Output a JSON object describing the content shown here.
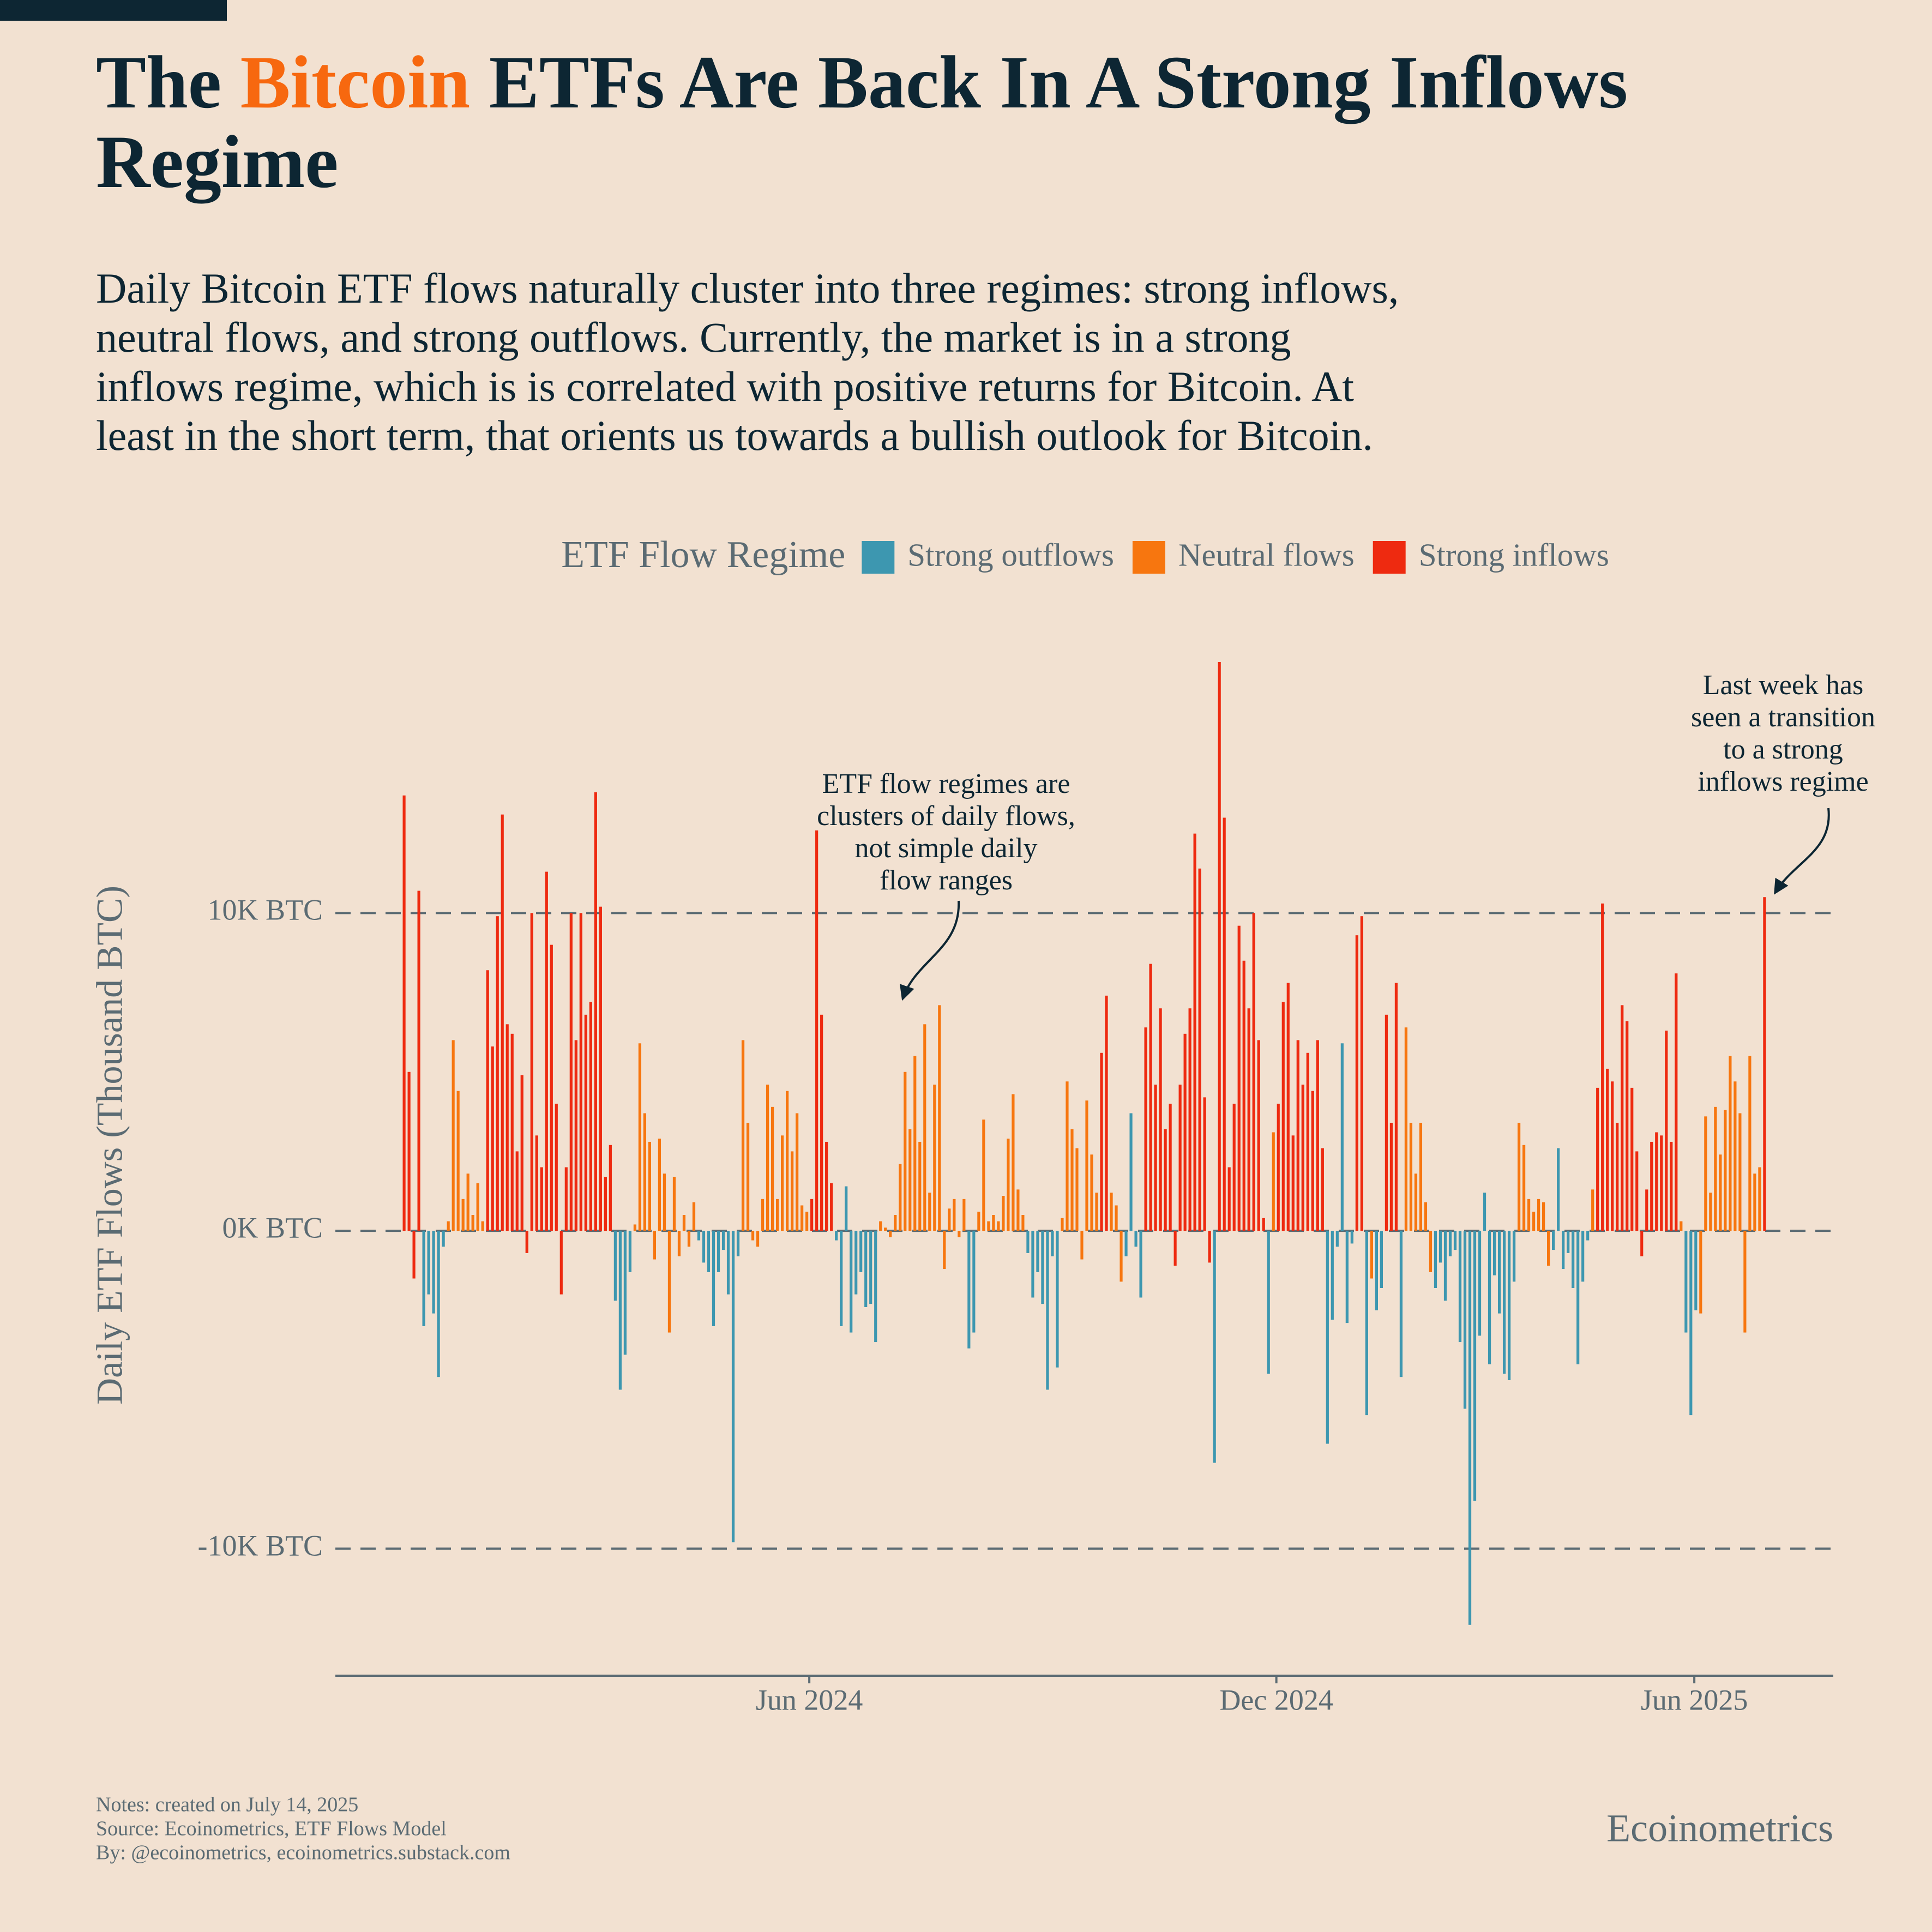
{
  "chart_data": {
    "type": "bar",
    "title": {
      "lead": "The",
      "highlight": "Bitcoin",
      "rest": "ETFs Are Back In A Strong Inflows Regime"
    },
    "subtitle": [
      "Daily Bitcoin ETF flows naturally cluster into three regimes: strong inflows,",
      "neutral flows, and strong outflows. Currently, the market is in a strong",
      "inflows regime, which is is correlated with positive returns for Bitcoin. At",
      "least in the short term, that orients us towards a bullish outlook for Bitcoin."
    ],
    "legend_title": "ETF Flow Regime",
    "y_label": "Daily ETF Flows (Thousand BTC)",
    "ylim": [
      -14,
      18.5
    ],
    "yticks": [
      {
        "value": 10,
        "label": "10K BTC"
      },
      {
        "value": 0,
        "label": "0K BTC"
      },
      {
        "value": -10,
        "label": "-10K BTC"
      }
    ],
    "grid": true,
    "xlim": [
      -14,
      291
    ],
    "xticks": [
      {
        "value": 82.5,
        "label": "Jun 2024"
      },
      {
        "value": 177.6,
        "label": "Dec 2024"
      },
      {
        "value": 262.7,
        "label": "Jun 2025"
      }
    ],
    "categories": [
      null,
      null,
      null,
      null,
      null,
      null,
      null,
      null,
      null,
      null,
      null,
      null,
      null,
      null,
      null,
      null,
      null,
      null,
      null,
      null,
      null,
      null,
      null,
      null,
      null,
      null,
      null,
      null,
      null,
      null,
      null,
      null,
      null,
      null,
      null,
      null,
      null,
      null,
      null,
      null,
      null,
      null,
      null,
      null,
      null,
      null,
      null,
      null,
      null,
      null,
      null,
      null,
      null,
      null,
      null,
      null,
      null,
      null,
      null,
      null,
      null,
      null,
      null,
      null,
      null,
      null,
      null,
      null,
      null,
      null,
      null,
      null,
      null,
      null,
      null,
      null,
      null,
      null,
      null,
      null,
      null,
      null,
      null,
      null,
      null,
      null,
      null,
      null,
      null,
      null,
      null,
      null,
      null,
      null,
      null,
      null,
      null,
      null,
      null,
      null,
      null,
      null,
      null,
      null,
      null,
      null,
      null,
      null,
      null,
      null,
      null,
      null,
      null,
      null,
      null,
      null,
      null,
      null,
      null,
      null,
      null,
      null,
      null,
      null,
      null,
      null,
      null,
      null,
      null,
      null,
      null,
      null,
      null,
      null,
      null,
      null,
      null,
      null,
      null,
      null,
      null,
      null,
      null,
      null,
      null,
      null,
      null,
      null,
      null,
      null,
      null,
      null,
      null,
      null,
      null,
      null,
      null,
      null,
      null,
      null,
      null,
      null,
      null,
      null,
      null,
      null,
      null,
      null,
      null,
      null,
      null,
      null,
      null,
      null,
      null,
      null,
      null,
      null,
      null,
      null,
      null,
      null,
      null,
      null,
      null,
      null,
      null,
      null,
      null,
      null,
      null,
      null,
      null,
      null,
      null,
      null,
      null,
      null,
      null,
      null,
      null,
      null,
      null,
      null,
      null,
      null,
      null,
      null,
      null,
      null,
      null,
      null,
      null,
      null,
      null,
      null,
      null,
      null,
      null,
      null,
      null,
      null,
      null,
      null,
      null,
      null,
      null,
      null,
      null,
      null,
      null,
      null,
      null,
      null,
      null,
      null,
      null,
      null,
      null,
      null,
      null,
      null,
      null,
      null,
      null,
      null,
      null,
      null,
      null,
      null,
      null,
      null,
      null,
      null,
      null,
      null,
      null,
      null,
      null,
      null,
      null,
      null,
      null,
      null,
      null,
      null,
      null,
      null,
      null,
      null,
      null,
      null,
      null,
      null,
      null,
      null,
      null,
      null
    ],
    "series": [
      {
        "name": "Strong outflows",
        "color": "#3d97b0",
        "values": [
          null,
          null,
          null,
          null,
          -3.0,
          -2.0,
          -2.6,
          -4.6,
          -0.5,
          null,
          null,
          null,
          null,
          null,
          null,
          null,
          null,
          null,
          null,
          null,
          null,
          null,
          null,
          null,
          null,
          null,
          null,
          null,
          null,
          null,
          null,
          null,
          null,
          null,
          null,
          null,
          null,
          null,
          null,
          null,
          null,
          null,
          null,
          -2.2,
          -5.0,
          -3.9,
          -1.3,
          null,
          null,
          null,
          null,
          null,
          null,
          null,
          null,
          null,
          null,
          null,
          null,
          null,
          -0.3,
          -1.0,
          -1.3,
          -3.0,
          -1.3,
          -0.6,
          -2.0,
          -9.8,
          -0.8,
          null,
          null,
          null,
          null,
          null,
          null,
          null,
          null,
          null,
          null,
          null,
          null,
          null,
          null,
          null,
          null,
          null,
          null,
          null,
          -0.3,
          -3.0,
          1.4,
          -3.2,
          -2.0,
          -1.3,
          -2.4,
          -2.3,
          -3.5,
          null,
          null,
          null,
          null,
          null,
          null,
          null,
          null,
          null,
          null,
          null,
          null,
          null,
          null,
          null,
          null,
          null,
          null,
          -3.7,
          -3.2,
          null,
          null,
          null,
          null,
          null,
          null,
          null,
          null,
          null,
          null,
          -0.7,
          -2.1,
          -1.3,
          -2.3,
          -5.0,
          -0.8,
          -4.3,
          null,
          null,
          null,
          null,
          null,
          null,
          null,
          null,
          null,
          null,
          null,
          null,
          null,
          -0.8,
          3.7,
          -0.5,
          -2.1,
          null,
          null,
          null,
          null,
          null,
          null,
          null,
          null,
          null,
          null,
          null,
          null,
          null,
          null,
          -7.3,
          null,
          null,
          null,
          null,
          null,
          null,
          null,
          null,
          null,
          null,
          -4.5,
          null,
          null,
          null,
          null,
          null,
          null,
          null,
          null,
          null,
          null,
          null,
          -6.7,
          -2.8,
          -0.5,
          5.9,
          -2.9,
          -0.4,
          null,
          null,
          -5.8,
          null,
          -2.5,
          -1.8,
          null,
          null,
          null,
          -4.6,
          null,
          null,
          null,
          null,
          null,
          null,
          -1.8,
          -1.0,
          -2.2,
          -0.8,
          -0.6,
          -3.5,
          -5.6,
          -12.4,
          -8.5,
          -3.3,
          1.2,
          -4.2,
          -1.4,
          -2.6,
          -4.5,
          -4.7,
          -1.6,
          null,
          null,
          null,
          null,
          null,
          null,
          null,
          -0.6,
          2.6,
          -1.2,
          -0.7,
          -1.8,
          -4.2,
          -1.6,
          -0.3,
          null,
          null,
          null,
          null,
          null,
          null,
          null,
          null,
          null,
          null,
          null,
          null,
          null,
          null,
          null,
          null,
          null,
          null,
          null,
          -3.2,
          -5.8,
          -2.5,
          null,
          null,
          null,
          null,
          null,
          null,
          null,
          null,
          null,
          null,
          null,
          null,
          null,
          null
        ]
      },
      {
        "name": "Neutral flows",
        "color": "#f7760f",
        "values": [
          null,
          null,
          null,
          null,
          null,
          null,
          null,
          null,
          null,
          0.3,
          6.0,
          4.4,
          1.0,
          1.8,
          0.5,
          1.5,
          0.3,
          null,
          null,
          null,
          null,
          null,
          null,
          null,
          null,
          null,
          null,
          null,
          null,
          null,
          null,
          null,
          null,
          null,
          null,
          null,
          null,
          null,
          null,
          null,
          null,
          null,
          null,
          null,
          null,
          null,
          null,
          0.2,
          5.9,
          3.7,
          2.8,
          -0.9,
          2.9,
          1.8,
          -3.2,
          1.7,
          -0.8,
          0.5,
          -0.5,
          0.9,
          null,
          null,
          null,
          null,
          null,
          null,
          null,
          null,
          null,
          6.0,
          3.4,
          -0.3,
          -0.5,
          1.0,
          4.6,
          3.9,
          1.0,
          3.0,
          4.4,
          2.5,
          3.7,
          0.8,
          0.6,
          null,
          null,
          null,
          null,
          null,
          null,
          null,
          null,
          null,
          null,
          null,
          null,
          null,
          null,
          0.3,
          0.1,
          -0.2,
          0.5,
          2.1,
          5.0,
          3.2,
          5.5,
          2.8,
          6.5,
          1.2,
          4.6,
          7.1,
          -1.2,
          0.7,
          1.0,
          -0.2,
          1.0,
          null,
          null,
          0.6,
          3.5,
          0.3,
          0.5,
          0.3,
          1.1,
          2.9,
          4.3,
          1.3,
          0.5,
          null,
          null,
          null,
          null,
          null,
          null,
          null,
          0.4,
          4.7,
          3.2,
          2.6,
          -0.9,
          4.1,
          2.4,
          1.2,
          null,
          null,
          1.2,
          0.8,
          -1.6,
          null,
          null,
          null,
          null,
          null,
          null,
          null,
          null,
          null,
          null,
          null,
          null,
          null,
          null,
          null,
          null,
          null,
          null,
          null,
          null,
          null,
          null,
          null,
          null,
          null,
          null,
          null,
          null,
          null,
          null,
          3.1,
          null,
          null,
          null,
          null,
          null,
          null,
          null,
          null,
          null,
          null,
          null,
          null,
          null,
          null,
          null,
          null,
          null,
          null,
          null,
          -1.5,
          null,
          null,
          null,
          null,
          null,
          null,
          6.4,
          3.4,
          1.8,
          3.4,
          0.9,
          -1.3,
          null,
          null,
          null,
          null,
          null,
          null,
          null,
          null,
          null,
          null,
          null,
          null,
          null,
          null,
          null,
          null,
          null,
          3.4,
          2.7,
          1.0,
          0.6,
          1.0,
          0.9,
          -1.1,
          null,
          null,
          null,
          null,
          null,
          null,
          null,
          null,
          1.3,
          null,
          null,
          null,
          null,
          null,
          null,
          null,
          null,
          null,
          null,
          null,
          null,
          null,
          null,
          null,
          null,
          null,
          0.3,
          null,
          null,
          null,
          -2.6,
          3.6,
          1.2,
          3.9,
          2.4,
          3.8,
          5.5,
          4.7,
          3.7,
          -3.2,
          5.5,
          1.8,
          2.0,
          null
        ]
      },
      {
        "name": "Strong inflows",
        "color": "#ee2a10",
        "values": [
          13.7,
          5.0,
          -1.5,
          10.7,
          null,
          null,
          null,
          null,
          null,
          null,
          null,
          null,
          null,
          null,
          null,
          null,
          null,
          8.2,
          5.8,
          9.9,
          13.1,
          6.5,
          6.2,
          2.5,
          4.9,
          -0.7,
          10.0,
          3.0,
          2.0,
          11.3,
          9.0,
          4.0,
          -2.0,
          2.0,
          10.0,
          6.0,
          10.0,
          6.8,
          7.2,
          13.8,
          10.2,
          1.7,
          2.7,
          null,
          null,
          null,
          null,
          null,
          null,
          null,
          null,
          null,
          null,
          null,
          null,
          null,
          null,
          null,
          null,
          null,
          null,
          null,
          null,
          null,
          null,
          null,
          null,
          null,
          null,
          null,
          null,
          null,
          null,
          null,
          null,
          null,
          null,
          null,
          null,
          null,
          null,
          null,
          null,
          1.0,
          12.6,
          6.8,
          2.8,
          1.5,
          null,
          null,
          null,
          null,
          null,
          null,
          null,
          null,
          null,
          null,
          null,
          null,
          null,
          null,
          null,
          null,
          null,
          null,
          null,
          null,
          null,
          null,
          null,
          null,
          null,
          null,
          null,
          null,
          null,
          null,
          null,
          null,
          null,
          null,
          null,
          null,
          null,
          null,
          null,
          null,
          null,
          null,
          null,
          null,
          null,
          null,
          null,
          null,
          null,
          null,
          null,
          null,
          null,
          null,
          5.6,
          7.4,
          null,
          null,
          null,
          null,
          null,
          null,
          null,
          6.4,
          8.4,
          4.6,
          7.0,
          3.2,
          4.0,
          -1.1,
          4.6,
          6.2,
          7.0,
          12.5,
          11.4,
          4.2,
          -1.0,
          null,
          17.9,
          13.0,
          2.0,
          4.0,
          9.6,
          8.5,
          7.0,
          10.0,
          6.0,
          0.4,
          null,
          null,
          4.0,
          7.2,
          7.8,
          3.0,
          6.0,
          4.6,
          5.6,
          4.4,
          6.0,
          2.6,
          null,
          null,
          null,
          null,
          null,
          null,
          9.3,
          9.9,
          null,
          null,
          null,
          null,
          6.8,
          3.4,
          7.8,
          null,
          null,
          null,
          null,
          null,
          null,
          null,
          null,
          null,
          null,
          null,
          null,
          null,
          null,
          null,
          null,
          null,
          null,
          null,
          null,
          null,
          null,
          null,
          null,
          null,
          null,
          null,
          null,
          null,
          null,
          null,
          null,
          null,
          null,
          null,
          null,
          null,
          null,
          null,
          null,
          4.5,
          10.3,
          5.1,
          4.7,
          3.4,
          7.1,
          6.6,
          4.5,
          2.5,
          -0.8,
          1.3,
          2.8,
          3.1,
          3.0,
          6.3,
          2.8,
          8.1,
          null,
          null,
          null,
          null,
          null,
          null,
          null,
          null,
          null,
          null,
          null,
          null,
          null,
          null,
          null,
          null,
          null,
          10.5
        ]
      }
    ],
    "annotations": [
      [
        "ETF flow regimes are",
        "clusters of daily flows,",
        "not simple daily",
        "flow ranges"
      ],
      [
        "Last week has",
        "seen a transition",
        "to a strong",
        "inflows regime"
      ]
    ],
    "notes": [
      "Notes: created on July 14, 2025",
      "Source: Ecoinometrics, ETF Flows Model",
      "By: @ecoinometrics, ecoinometrics.substack.com"
    ],
    "brand": "Ecoinometrics"
  }
}
